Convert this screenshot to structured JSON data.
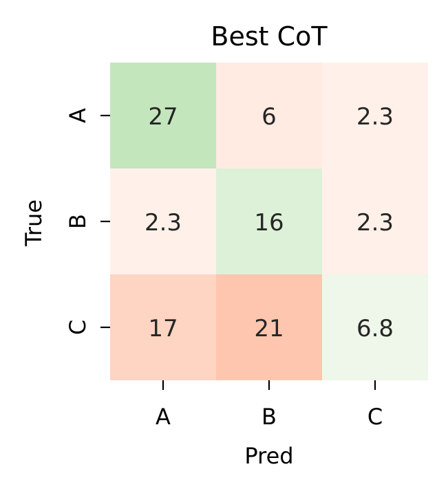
{
  "chart_data": {
    "type": "heatmap",
    "title": "Best CoT",
    "xlabel": "Pred",
    "ylabel": "True",
    "x_categories": [
      "A",
      "B",
      "C"
    ],
    "y_categories": [
      "A",
      "B",
      "C"
    ],
    "values": [
      [
        27,
        6,
        2.3
      ],
      [
        2.3,
        16,
        2.3
      ],
      [
        17,
        21,
        6.8
      ]
    ],
    "value_labels": [
      [
        "27",
        "6",
        "2.3"
      ],
      [
        "2.3",
        "16",
        "2.3"
      ],
      [
        "17",
        "21",
        "6.8"
      ]
    ],
    "cell_colors": [
      [
        "#c4e6bd",
        "#ffebe2",
        "#fff1e9"
      ],
      [
        "#fff1e9",
        "#ddf1d8",
        "#fff1e9"
      ],
      [
        "#fed4c2",
        "#fec6af",
        "#eef7e9"
      ]
    ],
    "colorbar": false,
    "grid": false
  }
}
